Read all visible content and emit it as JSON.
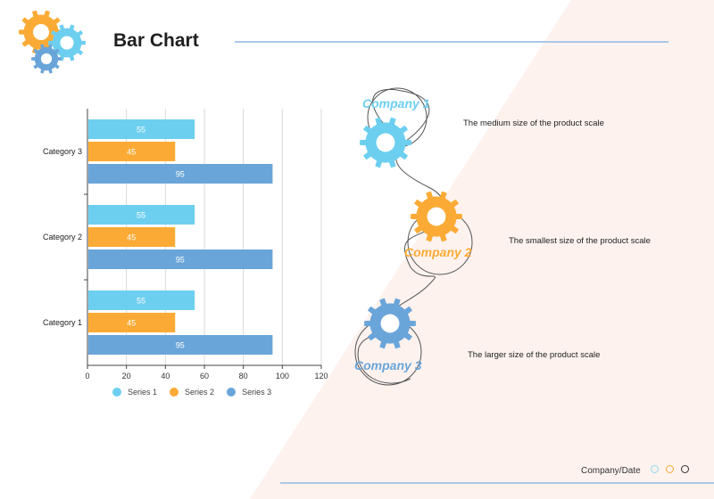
{
  "title": "Bar Chart",
  "footer": "Company/Date",
  "colors": {
    "series1": "#6dcff0",
    "series2": "#fbab35",
    "series3": "#6aa5d9",
    "rule": "#a9c8e6",
    "bg_tint": "#fdf2ee"
  },
  "chart_data": {
    "type": "bar",
    "orientation": "horizontal",
    "categories": [
      "Category 3",
      "Category 2",
      "Category 1"
    ],
    "series": [
      {
        "name": "Series 1",
        "values": [
          55,
          55,
          55
        ]
      },
      {
        "name": "Series 2",
        "values": [
          45,
          45,
          45
        ]
      },
      {
        "name": "Series 3",
        "values": [
          95,
          95,
          95
        ]
      }
    ],
    "xlim": [
      0,
      120
    ],
    "xticks": [
      "0",
      "20",
      "40",
      "60",
      "80",
      "100",
      "120"
    ],
    "grid": true,
    "legend": "bottom"
  },
  "companies": [
    {
      "name": "Company 1",
      "desc": "The medium size of the product scale",
      "color": "#6dcff0"
    },
    {
      "name": "Company 2",
      "desc": "The smallest size of the product scale",
      "color": "#fbab35"
    },
    {
      "name": "Company 3",
      "desc": "The larger size of the product scale",
      "color": "#6aa5d9"
    }
  ]
}
